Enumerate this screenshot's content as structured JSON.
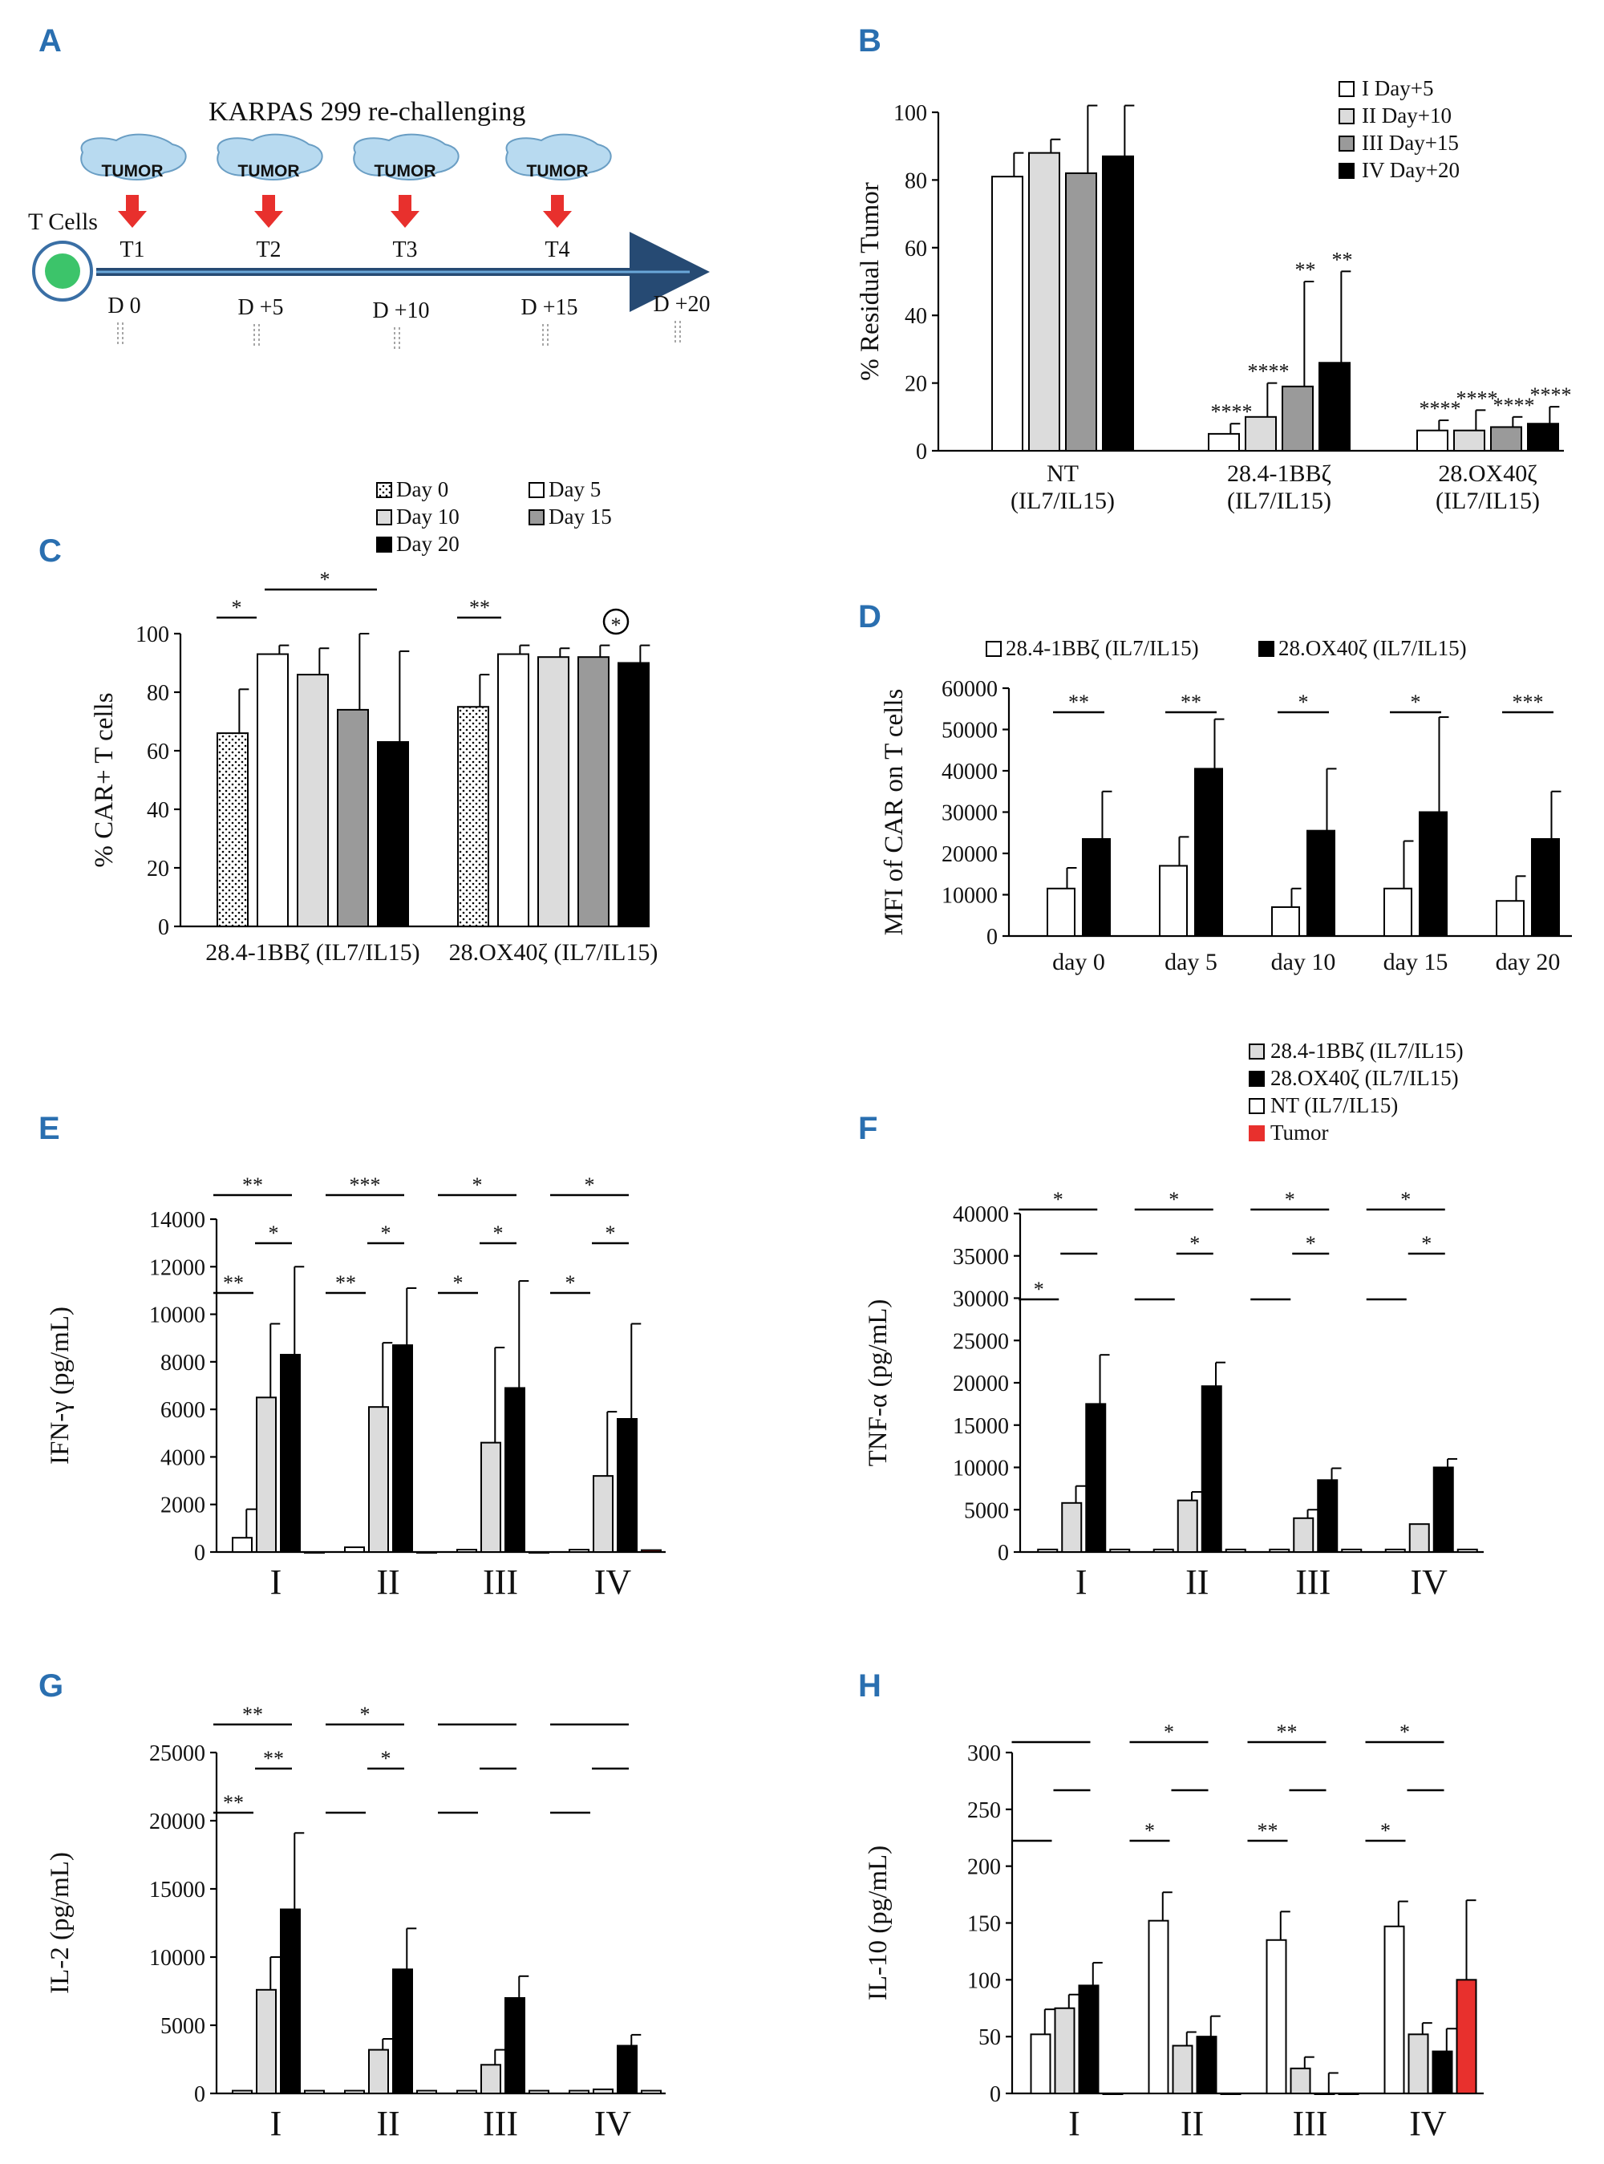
{
  "colors": {
    "white": "#ffffff",
    "lightgray": "#dcdcdc",
    "gray": "#9a9a9a",
    "black": "#000000",
    "red": "#e8302d",
    "blue": "#2a6fb0",
    "arrow": "#e8302d",
    "timeline": "#264a73",
    "cell": "#3cc46a"
  },
  "panels": {
    "A": "A",
    "B": "B",
    "C": "C",
    "D": "D",
    "E": "E",
    "F": "F",
    "G": "G",
    "H": "H"
  },
  "panel_a": {
    "title": "KARPAS 299 re-challenging",
    "tumor_label": "TUMOR",
    "tcells_label": "T Cells",
    "timepoints": [
      "T1",
      "T2",
      "T3",
      "T4"
    ],
    "days": [
      "D 0",
      "D +5",
      "D +10",
      "D +15",
      "D +20"
    ]
  },
  "chart_data": [
    {
      "id": "B",
      "type": "bar",
      "ylabel": "% Residual Tumor",
      "ylim": [
        0,
        100
      ],
      "yticks": [
        0,
        20,
        40,
        60,
        80,
        100
      ],
      "categories": [
        "NT\n(IL7/IL15)",
        "28.4-1BBζ\n(IL7/IL15)",
        "28.OX40ζ\n(IL7/IL15)"
      ],
      "legend": [
        "I Day+5",
        "II Day+10",
        "III Day+15",
        "IV Day+20"
      ],
      "series": [
        {
          "name": "I Day+5",
          "fill": "white",
          "values": [
            81,
            5,
            6
          ],
          "err": [
            7,
            3,
            3
          ],
          "sig": [
            "",
            "****",
            "****"
          ]
        },
        {
          "name": "II Day+10",
          "fill": "lightgray",
          "values": [
            88,
            10,
            6
          ],
          "err": [
            4,
            10,
            6
          ],
          "sig": [
            "",
            "****",
            "****"
          ]
        },
        {
          "name": "III Day+15",
          "fill": "gray",
          "values": [
            82,
            19,
            7
          ],
          "err": [
            20,
            31,
            3
          ],
          "sig": [
            "",
            "**",
            "****"
          ]
        },
        {
          "name": "IV Day+20",
          "fill": "black",
          "values": [
            87,
            26,
            8
          ],
          "err": [
            15,
            27,
            5
          ],
          "sig": [
            "",
            "**",
            "****"
          ]
        }
      ]
    },
    {
      "id": "C",
      "type": "bar",
      "ylabel": "% CAR+ T cells",
      "ylim": [
        0,
        100
      ],
      "yticks": [
        0,
        20,
        40,
        60,
        80,
        100
      ],
      "categories": [
        "28.4-1BBζ (IL7/IL15)",
        "28.OX40ζ (IL7/IL15)"
      ],
      "legend": [
        "Day 0",
        "Day 5",
        "Day 10",
        "Day 15",
        "Day 20"
      ],
      "series": [
        {
          "name": "Day 0",
          "fill": "dotted",
          "values": [
            66,
            75
          ],
          "err": [
            15,
            11
          ]
        },
        {
          "name": "Day 5",
          "fill": "white",
          "values": [
            93,
            93
          ],
          "err": [
            3,
            3
          ]
        },
        {
          "name": "Day 10",
          "fill": "lightgray",
          "values": [
            86,
            92
          ],
          "err": [
            9,
            3
          ]
        },
        {
          "name": "Day 15",
          "fill": "gray",
          "values": [
            74,
            92
          ],
          "err": [
            26,
            4
          ]
        },
        {
          "name": "Day 20",
          "fill": "black",
          "values": [
            63,
            90
          ],
          "err": [
            31,
            6
          ]
        }
      ],
      "sig": [
        "*",
        "*",
        "**",
        "*"
      ]
    },
    {
      "id": "D",
      "type": "bar",
      "ylabel": "MFI of CAR on T cells",
      "ylim": [
        0,
        60000
      ],
      "yticks": [
        0,
        10000,
        20000,
        30000,
        40000,
        50000,
        60000
      ],
      "categories": [
        "day 0",
        "day 5",
        "day 10",
        "day 15",
        "day 20"
      ],
      "legend": [
        "28.4-1BBζ (IL7/IL15)",
        "28.OX40ζ (IL7/IL15)"
      ],
      "series": [
        {
          "name": "28.4-1BBζ (IL7/IL15)",
          "fill": "white",
          "values": [
            11500,
            17000,
            7000,
            11500,
            8500
          ],
          "err": [
            5000,
            7000,
            4500,
            11500,
            6000
          ]
        },
        {
          "name": "28.OX40ζ (IL7/IL15)",
          "fill": "black",
          "values": [
            23500,
            40500,
            25500,
            30000,
            23500
          ],
          "err": [
            11500,
            12000,
            15000,
            23000,
            11500
          ]
        }
      ],
      "sig": [
        "**",
        "**",
        "*",
        "*",
        "***"
      ]
    },
    {
      "id": "E",
      "type": "bar",
      "ylabel": "IFN-γ (pg/mL)",
      "ylim": [
        0,
        14000
      ],
      "yticks": [
        0,
        2000,
        4000,
        6000,
        8000,
        10000,
        12000,
        14000
      ],
      "categories": [
        "I",
        "II",
        "III",
        "IV"
      ],
      "series": [
        {
          "name": "NT",
          "fill": "white",
          "values": [
            600,
            200,
            100,
            100
          ],
          "err": [
            1200,
            0,
            0,
            0
          ]
        },
        {
          "name": "28.4-1BBζ",
          "fill": "lightgray",
          "values": [
            6500,
            6100,
            4600,
            3200
          ],
          "err": [
            3100,
            2700,
            4000,
            2700
          ]
        },
        {
          "name": "28.OX40ζ",
          "fill": "black",
          "values": [
            8300,
            8700,
            6900,
            5600
          ],
          "err": [
            3700,
            2400,
            4500,
            4000
          ]
        },
        {
          "name": "Tumor",
          "fill": "red",
          "values": [
            0,
            0,
            0,
            80
          ],
          "err": [
            0,
            0,
            0,
            0
          ]
        }
      ],
      "sig_top": [
        "**",
        "***",
        "*",
        "*"
      ],
      "sig_mid": [
        "*",
        "*",
        "*",
        "*"
      ],
      "sig_low": [
        "**",
        "**",
        "*",
        "*"
      ]
    },
    {
      "id": "F",
      "type": "bar",
      "ylabel": "TNF-α (pg/mL)",
      "ylim": [
        0,
        40000
      ],
      "yticks": [
        0,
        5000,
        10000,
        15000,
        20000,
        25000,
        30000,
        35000,
        40000
      ],
      "categories": [
        "I",
        "II",
        "III",
        "IV"
      ],
      "legend": [
        "28.4-1BBζ (IL7/IL15)",
        "28.OX40ζ (IL7/IL15)",
        "NT (IL7/IL15)",
        "Tumor"
      ],
      "series": [
        {
          "name": "NT",
          "fill": "white",
          "values": [
            300,
            300,
            300,
            300
          ],
          "err": [
            0,
            0,
            0,
            0
          ]
        },
        {
          "name": "28.4-1BBζ",
          "fill": "lightgray",
          "values": [
            5800,
            6100,
            4000,
            3300
          ],
          "err": [
            2000,
            1000,
            1000,
            0
          ]
        },
        {
          "name": "28.OX40ζ",
          "fill": "black",
          "values": [
            17500,
            19600,
            8500,
            10000
          ],
          "err": [
            5800,
            2800,
            1400,
            1000
          ]
        },
        {
          "name": "Tumor",
          "fill": "white",
          "values": [
            300,
            300,
            300,
            300
          ],
          "err": [
            0,
            0,
            0,
            0
          ]
        }
      ],
      "sig_top": [
        "*",
        "*",
        "*",
        "*"
      ],
      "sig_mid": [
        "",
        "*",
        "*",
        "*"
      ],
      "sig_low": [
        "*",
        "",
        "",
        ""
      ]
    },
    {
      "id": "G",
      "type": "bar",
      "ylabel": "IL-2 (pg/mL)",
      "ylim": [
        0,
        25000
      ],
      "yticks": [
        0,
        5000,
        10000,
        15000,
        20000,
        25000
      ],
      "categories": [
        "I",
        "II",
        "III",
        "IV"
      ],
      "series": [
        {
          "name": "NT",
          "fill": "white",
          "values": [
            200,
            200,
            200,
            200
          ],
          "err": [
            0,
            0,
            0,
            0
          ]
        },
        {
          "name": "28.4-1BBζ",
          "fill": "lightgray",
          "values": [
            7600,
            3200,
            2100,
            300
          ],
          "err": [
            2400,
            800,
            1100,
            0
          ]
        },
        {
          "name": "28.OX40ζ",
          "fill": "black",
          "values": [
            13500,
            9100,
            7000,
            3500
          ],
          "err": [
            5600,
            3000,
            1600,
            800
          ]
        },
        {
          "name": "Tumor",
          "fill": "white",
          "values": [
            200,
            200,
            200,
            200
          ],
          "err": [
            0,
            0,
            0,
            0
          ]
        }
      ],
      "sig_top": [
        "**",
        "*",
        "",
        ""
      ],
      "sig_mid": [
        "**",
        "*",
        "",
        ""
      ],
      "sig_low": [
        "**",
        "",
        "",
        ""
      ]
    },
    {
      "id": "H",
      "type": "bar",
      "ylabel": "IL-10 (pg/mL)",
      "ylim": [
        0,
        300
      ],
      "yticks": [
        0,
        50,
        100,
        150,
        200,
        250,
        300
      ],
      "categories": [
        "I",
        "II",
        "III",
        "IV"
      ],
      "series": [
        {
          "name": "NT",
          "fill": "white",
          "values": [
            52,
            152,
            135,
            147
          ],
          "err": [
            22,
            25,
            25,
            22
          ]
        },
        {
          "name": "28.4-1BBζ",
          "fill": "lightgray",
          "values": [
            75,
            42,
            22,
            52
          ],
          "err": [
            12,
            12,
            10,
            10
          ]
        },
        {
          "name": "28.OX40ζ",
          "fill": "black",
          "values": [
            95,
            50,
            0,
            37
          ],
          "err": [
            20,
            18,
            18,
            20
          ]
        },
        {
          "name": "Tumor",
          "fill": "red",
          "values": [
            0,
            0,
            0,
            100
          ],
          "err": [
            0,
            0,
            0,
            70
          ]
        }
      ],
      "sig_top": [
        "",
        "*",
        "**",
        "*"
      ],
      "sig_mid": [
        "",
        "",
        "",
        ""
      ],
      "sig_low": [
        "",
        "*",
        "**",
        "*"
      ]
    }
  ]
}
